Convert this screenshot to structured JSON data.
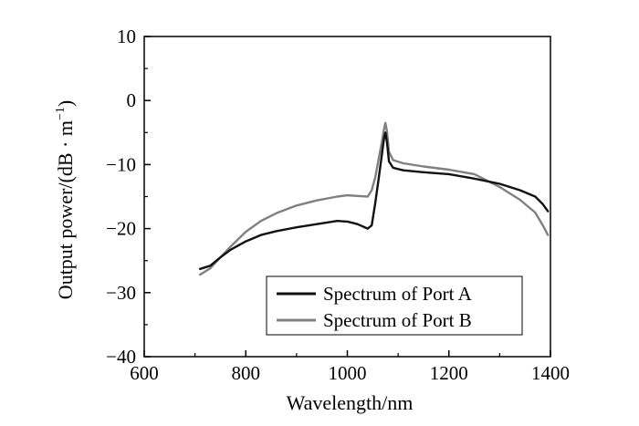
{
  "chart_data": {
    "type": "line",
    "xlabel": "Wavelength/nm",
    "ylabel_main": "Output power/(dB · m",
    "ylabel_sup": "−1",
    "ylabel_close": ")",
    "xlim": [
      600,
      1400
    ],
    "ylim": [
      -40,
      10
    ],
    "xticks": [
      600,
      800,
      1000,
      1200,
      1400
    ],
    "xtick_labels": [
      "600",
      "800",
      "1000",
      "1200",
      "1400"
    ],
    "yticks": [
      10,
      0,
      -10,
      -20,
      -30,
      -40
    ],
    "ytick_labels": [
      "10",
      "0",
      "−10",
      "−20",
      "−30",
      "−40"
    ],
    "grid": false,
    "legend_position": "bottom-right",
    "series": [
      {
        "name": "Spectrum of Port A",
        "color": "#111111",
        "x": [
          710,
          730,
          750,
          770,
          800,
          830,
          860,
          900,
          940,
          980,
          1000,
          1020,
          1040,
          1048,
          1055,
          1062,
          1068,
          1072,
          1075,
          1078,
          1082,
          1090,
          1110,
          1150,
          1200,
          1250,
          1300,
          1340,
          1370,
          1385,
          1395
        ],
        "y": [
          -26.3,
          -25.8,
          -24.5,
          -23.3,
          -22.0,
          -21.0,
          -20.4,
          -19.8,
          -19.3,
          -18.8,
          -18.9,
          -19.3,
          -20.0,
          -19.5,
          -16.0,
          -12.0,
          -8.5,
          -6.0,
          -5.0,
          -6.5,
          -9.5,
          -10.5,
          -10.9,
          -11.2,
          -11.5,
          -12.2,
          -13.0,
          -14.0,
          -15.0,
          -16.2,
          -17.3
        ]
      },
      {
        "name": "Spectrum of Port B",
        "color": "#808080",
        "x": [
          710,
          730,
          750,
          770,
          800,
          830,
          860,
          900,
          940,
          980,
          1000,
          1020,
          1040,
          1048,
          1055,
          1062,
          1068,
          1072,
          1075,
          1078,
          1082,
          1090,
          1110,
          1150,
          1200,
          1250,
          1300,
          1340,
          1370,
          1385,
          1395
        ],
        "y": [
          -27.2,
          -26.2,
          -24.5,
          -22.8,
          -20.5,
          -18.8,
          -17.6,
          -16.4,
          -15.6,
          -15.0,
          -14.8,
          -14.9,
          -15.0,
          -14.0,
          -12.0,
          -9.0,
          -6.5,
          -4.5,
          -3.5,
          -4.8,
          -8.0,
          -9.3,
          -9.8,
          -10.3,
          -10.8,
          -11.5,
          -13.5,
          -15.5,
          -17.5,
          -19.5,
          -21.0
        ]
      }
    ]
  }
}
